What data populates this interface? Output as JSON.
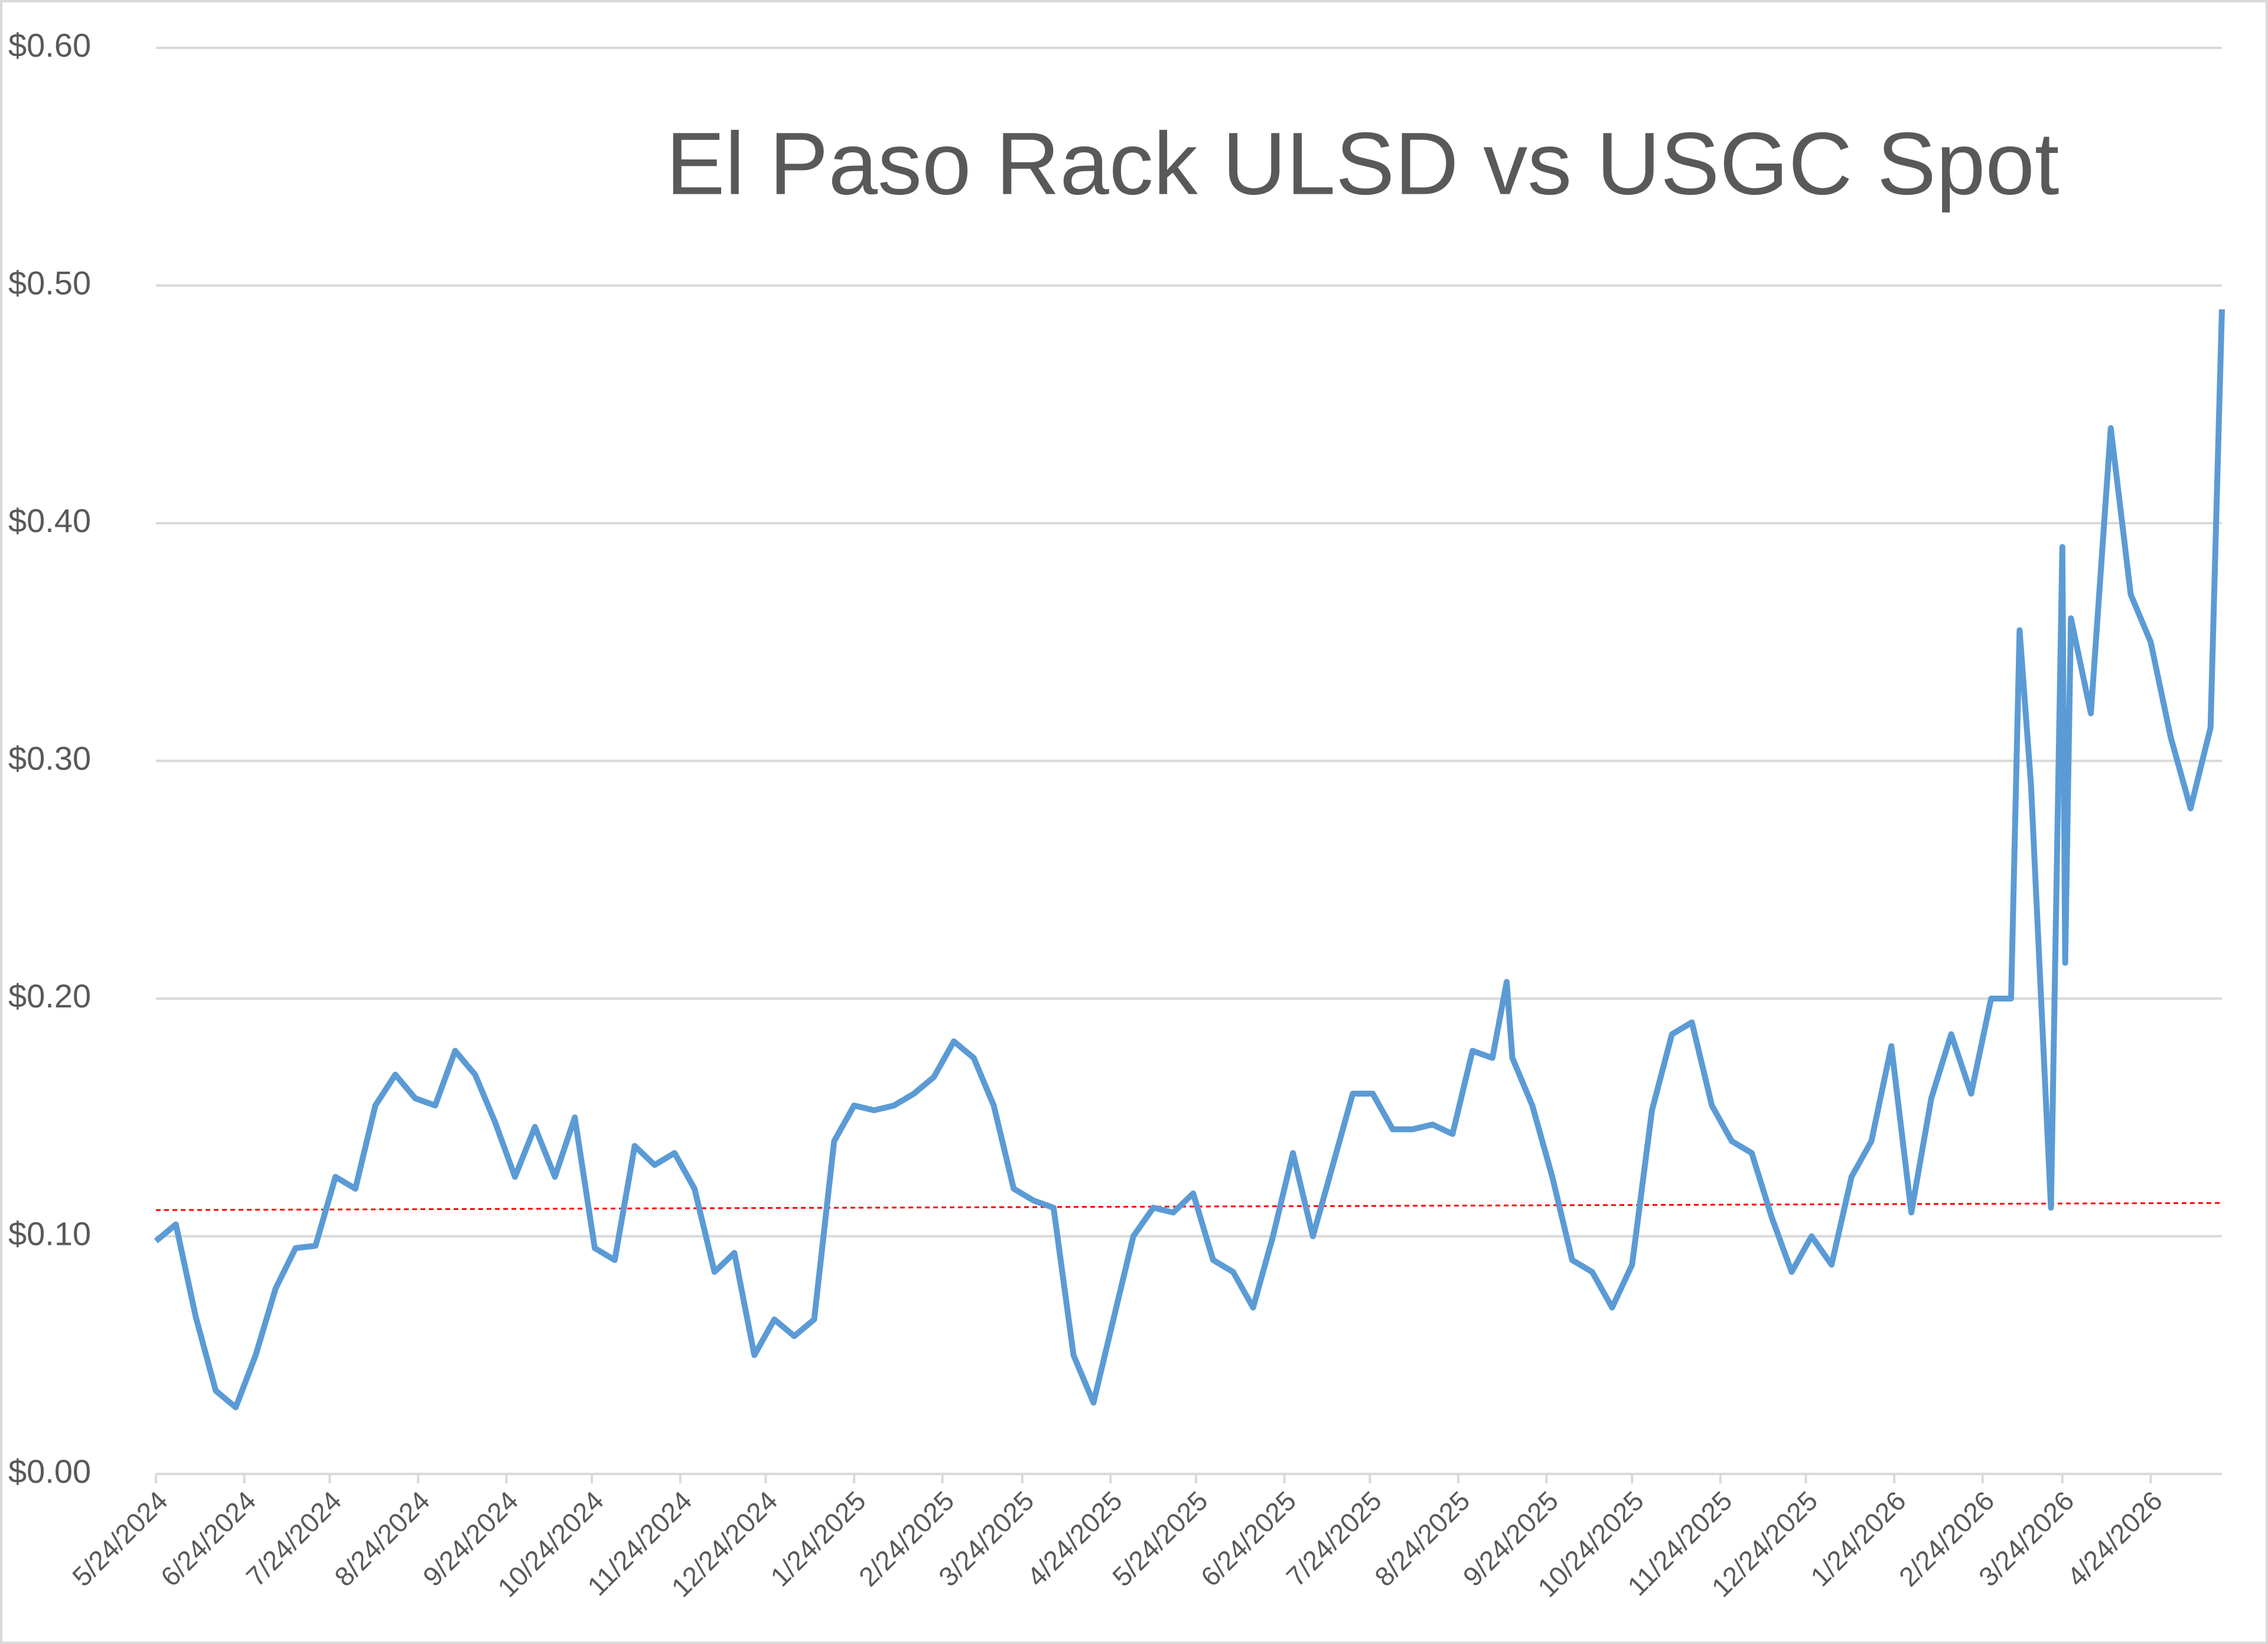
{
  "chart_data": {
    "type": "line",
    "title": "El Paso Rack ULSD vs USGC Spot",
    "x": [
      "5/24/2024",
      "5/31/2024",
      "6/7/2024",
      "6/14/2024",
      "6/21/2024",
      "6/28/2024",
      "7/5/2024",
      "7/12/2024",
      "7/19/2024",
      "7/26/2024",
      "8/2/2024",
      "8/9/2024",
      "8/16/2024",
      "8/23/2024",
      "8/30/2024",
      "9/6/2024",
      "9/13/2024",
      "9/20/2024",
      "9/27/2024",
      "10/4/2024",
      "10/11/2024",
      "10/18/2024",
      "10/25/2024",
      "11/1/2024",
      "11/8/2024",
      "11/15/2024",
      "11/22/2024",
      "11/29/2024",
      "12/6/2024",
      "12/13/2024",
      "12/20/2024",
      "12/27/2024",
      "1/3/2025",
      "1/10/2025",
      "1/17/2025",
      "1/24/2025",
      "1/31/2025",
      "2/7/2025",
      "2/14/2025",
      "2/21/2025",
      "2/28/2025",
      "3/7/2025",
      "3/14/2025",
      "3/21/2025",
      "3/28/2025",
      "4/4/2025",
      "4/11/2025",
      "4/18/2025",
      "4/25/2025",
      "5/2/2025",
      "5/9/2025",
      "5/16/2025",
      "5/23/2025",
      "5/30/2025",
      "6/6/2025",
      "6/13/2025",
      "6/20/2025",
      "6/27/2025",
      "7/4/2025",
      "7/11/2025",
      "7/18/2025",
      "7/25/2025",
      "8/1/2025",
      "8/8/2025",
      "8/15/2025",
      "8/22/2025",
      "8/29/2025",
      "9/5/2025",
      "9/10/2025",
      "9/12/2025",
      "9/19/2025",
      "9/26/2025",
      "10/3/2025",
      "10/10/2025",
      "10/17/2025",
      "10/24/2025",
      "10/31/2025",
      "11/7/2025",
      "11/14/2025",
      "11/21/2025",
      "11/28/2025",
      "12/5/2025",
      "12/12/2025",
      "12/19/2025",
      "12/26/2025",
      "1/2/2026",
      "1/9/2026",
      "1/16/2026",
      "1/23/2026",
      "1/30/2026",
      "2/6/2026",
      "2/13/2026",
      "2/20/2026",
      "2/27/2026",
      "3/6/2026",
      "3/9/2026",
      "3/13/2026",
      "3/20/2026",
      "3/24/2026",
      "3/25/2026",
      "3/27/2026",
      "4/3/2026",
      "4/10/2026",
      "4/17/2026",
      "4/24/2026",
      "5/1/2026",
      "5/8/2026",
      "5/15/2026",
      "5/19/2026"
    ],
    "series": [
      {
        "color": "#5b9bd5",
        "values": [
          0.098,
          0.105,
          0.066,
          0.035,
          0.028,
          0.05,
          0.078,
          0.095,
          0.096,
          0.125,
          0.12,
          0.155,
          0.168,
          0.158,
          0.155,
          0.178,
          0.168,
          0.148,
          0.125,
          0.146,
          0.125,
          0.15,
          0.095,
          0.09,
          0.138,
          0.13,
          0.135,
          0.12,
          0.085,
          0.093,
          0.05,
          0.065,
          0.058,
          0.065,
          0.14,
          0.155,
          0.153,
          0.155,
          0.16,
          0.167,
          0.182,
          0.175,
          0.155,
          0.12,
          0.115,
          0.112,
          0.05,
          0.03,
          0.065,
          0.1,
          0.112,
          0.11,
          0.118,
          0.09,
          0.085,
          0.07,
          0.1,
          0.135,
          0.1,
          0.13,
          0.16,
          0.16,
          0.145,
          0.145,
          0.147,
          0.143,
          0.178,
          0.175,
          0.207,
          0.175,
          0.155,
          0.125,
          0.09,
          0.085,
          0.07,
          0.088,
          0.153,
          0.185,
          0.19,
          0.155,
          0.14,
          0.135,
          0.108,
          0.085,
          0.1,
          0.088,
          0.125,
          0.14,
          0.18,
          0.11,
          0.158,
          0.185,
          0.16,
          0.2,
          0.2,
          0.355,
          0.29,
          0.112,
          0.39,
          0.215,
          0.36,
          0.32,
          0.44,
          0.37,
          0.35,
          0.31,
          0.28,
          0.314,
          0.49
        ]
      }
    ],
    "trendline": {
      "color": "#ff0000",
      "values": [
        0.111,
        0.114
      ]
    },
    "xlim": [
      "5/24/2024",
      "5/19/2026"
    ],
    "xticks": [
      "5/24/2024",
      "6/24/2024",
      "7/24/2024",
      "8/24/2024",
      "9/24/2024",
      "10/24/2024",
      "11/24/2024",
      "12/24/2024",
      "1/24/2025",
      "2/24/2025",
      "3/24/2025",
      "4/24/2025",
      "5/24/2025",
      "6/24/2025",
      "7/24/2025",
      "8/24/2025",
      "9/24/2025",
      "10/24/2025",
      "11/24/2025",
      "12/24/2025",
      "1/24/2026",
      "2/24/2026",
      "3/24/2026",
      "4/24/2026"
    ],
    "ylim": [
      0,
      0.6
    ],
    "yticks": [
      {
        "value": 0,
        "label": "$0.00"
      },
      {
        "value": 0.1,
        "label": "$0.10"
      },
      {
        "value": 0.2,
        "label": "$0.20"
      },
      {
        "value": 0.3,
        "label": "$0.30"
      },
      {
        "value": 0.4,
        "label": "$0.40"
      },
      {
        "value": 0.5,
        "label": "$0.50"
      },
      {
        "value": 0.6,
        "label": "$0.60"
      }
    ],
    "grid": true
  }
}
